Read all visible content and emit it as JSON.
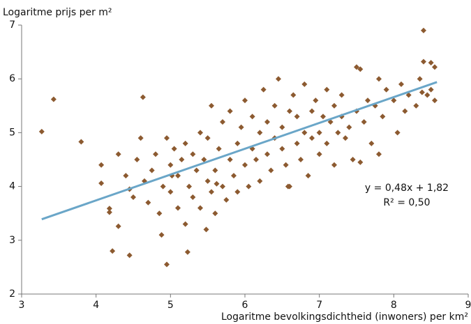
{
  "chart_data": {
    "type": "scatter",
    "y_label": "Logaritme prijs per m²",
    "x_label": "Logaritme bevolkingsdichtheid (inwoners) per km²",
    "xlim": [
      3,
      9
    ],
    "xticks": [
      3,
      4,
      5,
      6,
      7,
      8,
      9
    ],
    "ylim": [
      2,
      7
    ],
    "yticks": [
      2,
      3,
      4,
      5,
      6,
      7
    ],
    "grid": false,
    "annotations": [
      "y = 0,48x + 1,82",
      "R² = 0,50"
    ],
    "series": [
      {
        "type": "scatter",
        "color": "#8c5a30",
        "x": [
          3.27,
          3.43,
          3.8,
          4.07,
          4.07,
          4.18,
          4.18,
          4.22,
          4.45,
          4.3,
          4.63,
          4.95,
          4.88,
          5.23,
          8.4,
          8.55,
          8.5,
          8.4,
          7.5,
          7.55,
          4.3,
          4.4,
          4.45,
          4.5,
          4.55,
          4.6,
          4.65,
          4.7,
          4.75,
          4.8,
          4.85,
          4.9,
          4.95,
          5.0,
          5.0,
          5.05,
          5.1,
          5.1,
          5.15,
          5.2,
          5.2,
          5.25,
          5.3,
          5.3,
          5.35,
          5.4,
          5.4,
          5.45,
          5.5,
          5.5,
          5.55,
          5.55,
          5.6,
          5.6,
          5.65,
          5.7,
          5.7,
          5.75,
          5.8,
          5.8,
          5.85,
          5.9,
          5.9,
          5.95,
          6.0,
          6.0,
          6.05,
          6.1,
          6.1,
          6.15,
          6.2,
          6.2,
          6.25,
          6.3,
          6.3,
          6.35,
          6.4,
          6.4,
          6.45,
          6.5,
          6.5,
          6.55,
          6.6,
          6.6,
          6.65,
          6.7,
          6.7,
          6.75,
          6.8,
          6.8,
          6.85,
          6.9,
          6.9,
          6.95,
          7.0,
          7.0,
          7.05,
          7.1,
          7.1,
          7.15,
          7.2,
          7.2,
          7.25,
          7.3,
          7.3,
          7.35,
          7.4,
          7.45,
          7.5,
          7.6,
          7.65,
          7.7,
          7.75,
          7.8,
          7.8,
          7.85,
          7.9,
          8.0,
          8.05,
          8.1,
          8.15,
          8.2,
          8.3,
          8.35,
          8.45,
          8.5,
          8.55,
          5.02,
          5.48,
          5.62,
          6.58,
          7.55,
          8.38
        ],
        "values": [
          5.02,
          5.62,
          4.83,
          4.06,
          4.4,
          3.52,
          3.59,
          2.8,
          2.72,
          3.26,
          5.66,
          2.55,
          3.1,
          2.78,
          6.9,
          6.22,
          6.3,
          6.32,
          6.22,
          6.18,
          4.6,
          4.2,
          3.95,
          3.8,
          4.5,
          4.9,
          4.1,
          3.7,
          4.3,
          4.6,
          3.5,
          4.0,
          4.9,
          4.4,
          3.9,
          4.7,
          3.6,
          4.2,
          4.5,
          3.3,
          4.8,
          4.0,
          4.6,
          3.8,
          4.3,
          5.0,
          3.6,
          4.5,
          4.1,
          4.9,
          3.9,
          5.5,
          4.3,
          3.5,
          4.7,
          4.0,
          5.2,
          3.75,
          4.5,
          5.4,
          4.2,
          4.8,
          3.9,
          5.1,
          4.4,
          5.6,
          4.0,
          4.7,
          5.3,
          4.5,
          5.0,
          4.1,
          5.8,
          4.6,
          5.2,
          4.3,
          5.5,
          4.9,
          6.0,
          4.7,
          5.1,
          4.4,
          5.4,
          4.0,
          5.7,
          4.8,
          5.3,
          4.5,
          5.0,
          5.9,
          4.2,
          5.4,
          4.9,
          5.6,
          5.0,
          4.6,
          5.3,
          5.8,
          4.8,
          5.2,
          5.5,
          4.4,
          5.0,
          5.7,
          5.3,
          4.9,
          5.1,
          4.5,
          5.4,
          5.2,
          5.6,
          4.8,
          5.5,
          6.0,
          4.6,
          5.3,
          5.8,
          5.6,
          5.0,
          5.9,
          5.4,
          5.7,
          5.5,
          6.0,
          5.7,
          5.8,
          5.6,
          4.2,
          3.2,
          4.05,
          4.0,
          4.45,
          5.75
        ]
      },
      {
        "type": "line",
        "color": "#6aa6c8",
        "x": [
          3.27,
          8.58
        ],
        "values": [
          3.39,
          5.94
        ]
      }
    ]
  }
}
